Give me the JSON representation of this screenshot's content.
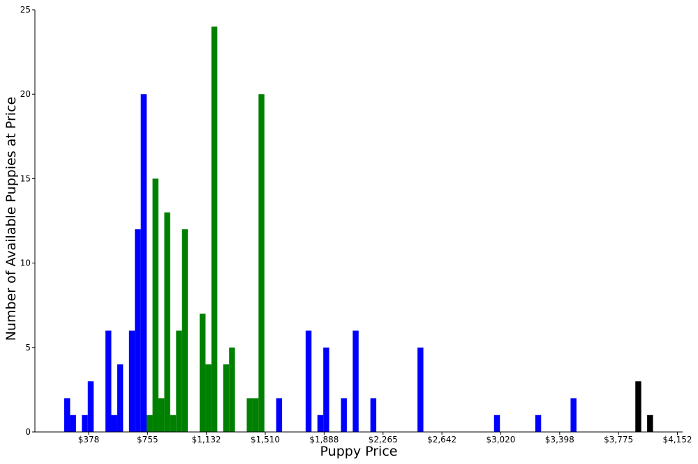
{
  "chart_data": {
    "type": "histogram",
    "x_label": "Puppy Price",
    "y_label": "Number of Available Puppies at Price",
    "bins": [
      221,
      258.75,
      296.5,
      334.25,
      372,
      409.75,
      447.5,
      485.25,
      523,
      560.75,
      598.5,
      636.25,
      674,
      711.75,
      749.5,
      787.25,
      825,
      862.75,
      900.5,
      938.25,
      976,
      1013.75,
      1051.5,
      1089.25,
      1127,
      1164.75,
      1202.5,
      1240.25,
      1278,
      1315.75,
      1353.5,
      1391.25,
      1429,
      1466.75,
      1504.5,
      1542.25,
      1580,
      1617.75,
      1655.5,
      1693.25,
      1731,
      1768.75,
      1806.5,
      1844.25,
      1882,
      1919.75,
      1957.5,
      1995.25,
      2033,
      2070.75,
      2108.5,
      2146.25,
      2184,
      2221.75,
      2259.5,
      2297.25,
      2335,
      2372.75,
      2410.5,
      2448.25,
      2486,
      2523.75,
      2561.5,
      2599.25,
      2637,
      2674.75,
      2712.5,
      2750.25,
      2788,
      2825.75,
      2863.5,
      2901.25,
      2939,
      2976.75,
      3014.5,
      3052.25,
      3090,
      3127.75,
      3165.5,
      3203.25,
      3241,
      3278.75,
      3316.5,
      3354.25,
      3392,
      3429.75,
      3467.5,
      3505.25,
      3543,
      3580.75,
      3618.5,
      3656.25,
      3694,
      3731.75,
      3769.5,
      3807.25,
      3845,
      3882.75,
      3920.5,
      3958.25,
      3996
    ],
    "values": [
      2,
      1,
      0,
      1,
      3,
      0,
      0,
      6,
      1,
      4,
      0,
      6,
      12,
      20,
      1,
      15,
      2,
      13,
      1,
      6,
      12,
      0,
      0,
      7,
      4,
      24,
      0,
      4,
      5,
      0,
      0,
      2,
      2,
      20,
      0,
      0,
      2,
      0,
      0,
      0,
      0,
      6,
      0,
      1,
      5,
      0,
      0,
      2,
      0,
      6,
      0,
      0,
      2,
      0,
      0,
      0,
      0,
      0,
      0,
      0,
      5,
      0,
      0,
      0,
      0,
      0,
      0,
      0,
      0,
      0,
      0,
      0,
      0,
      1,
      0,
      0,
      0,
      0,
      0,
      0,
      1,
      0,
      0,
      0,
      0,
      0,
      2,
      0,
      0,
      0,
      0,
      0,
      0,
      0,
      0,
      0,
      0,
      3,
      0,
      1
    ],
    "colors": [
      "#0000ff",
      "#0000ff",
      "#0000ff",
      "#0000ff",
      "#0000ff",
      "#0000ff",
      "#0000ff",
      "#0000ff",
      "#0000ff",
      "#0000ff",
      "#0000ff",
      "#0000ff",
      "#0000ff",
      "#0000ff",
      "#008000",
      "#008000",
      "#008000",
      "#008000",
      "#008000",
      "#008000",
      "#008000",
      "#008000",
      "#008000",
      "#008000",
      "#008000",
      "#008000",
      "#008000",
      "#008000",
      "#008000",
      "#008000",
      "#008000",
      "#008000",
      "#008000",
      "#008000",
      "#0000ff",
      "#0000ff",
      "#0000ff",
      "#0000ff",
      "#0000ff",
      "#0000ff",
      "#0000ff",
      "#0000ff",
      "#0000ff",
      "#0000ff",
      "#0000ff",
      "#0000ff",
      "#0000ff",
      "#0000ff",
      "#0000ff",
      "#0000ff",
      "#0000ff",
      "#0000ff",
      "#0000ff",
      "#0000ff",
      "#0000ff",
      "#0000ff",
      "#0000ff",
      "#0000ff",
      "#0000ff",
      "#0000ff",
      "#0000ff",
      "#0000ff",
      "#0000ff",
      "#0000ff",
      "#0000ff",
      "#0000ff",
      "#0000ff",
      "#0000ff",
      "#0000ff",
      "#0000ff",
      "#0000ff",
      "#0000ff",
      "#0000ff",
      "#0000ff",
      "#0000ff",
      "#0000ff",
      "#0000ff",
      "#0000ff",
      "#0000ff",
      "#0000ff",
      "#0000ff",
      "#0000ff",
      "#0000ff",
      "#0000ff",
      "#0000ff",
      "#0000ff",
      "#0000ff",
      "#0000ff",
      "#0000ff",
      "#0000ff",
      "#0000ff",
      "#0000ff",
      "#0000ff",
      "#0000ff",
      "#0000ff",
      "#0000ff"
    ],
    "xlim": [
      33,
      4186
    ],
    "xticks": [
      {
        "value": 377.5,
        "label": "$378"
      },
      {
        "value": 755,
        "label": "$755"
      },
      {
        "value": 1132.5,
        "label": "$1,132"
      },
      {
        "value": 1510,
        "label": "$1,510"
      },
      {
        "value": 1887.5,
        "label": "$1,888"
      },
      {
        "value": 2265,
        "label": "$2,265"
      },
      {
        "value": 2642.5,
        "label": "$2,642"
      },
      {
        "value": 3020,
        "label": "$3,020"
      },
      {
        "value": 3397.5,
        "label": "$3,398"
      },
      {
        "value": 3775,
        "label": "$3,775"
      },
      {
        "value": 4152.5,
        "label": "$4,152"
      }
    ],
    "ylim": [
      0,
      25
    ],
    "yticks": [
      0,
      5,
      10,
      15,
      20,
      25
    ]
  }
}
